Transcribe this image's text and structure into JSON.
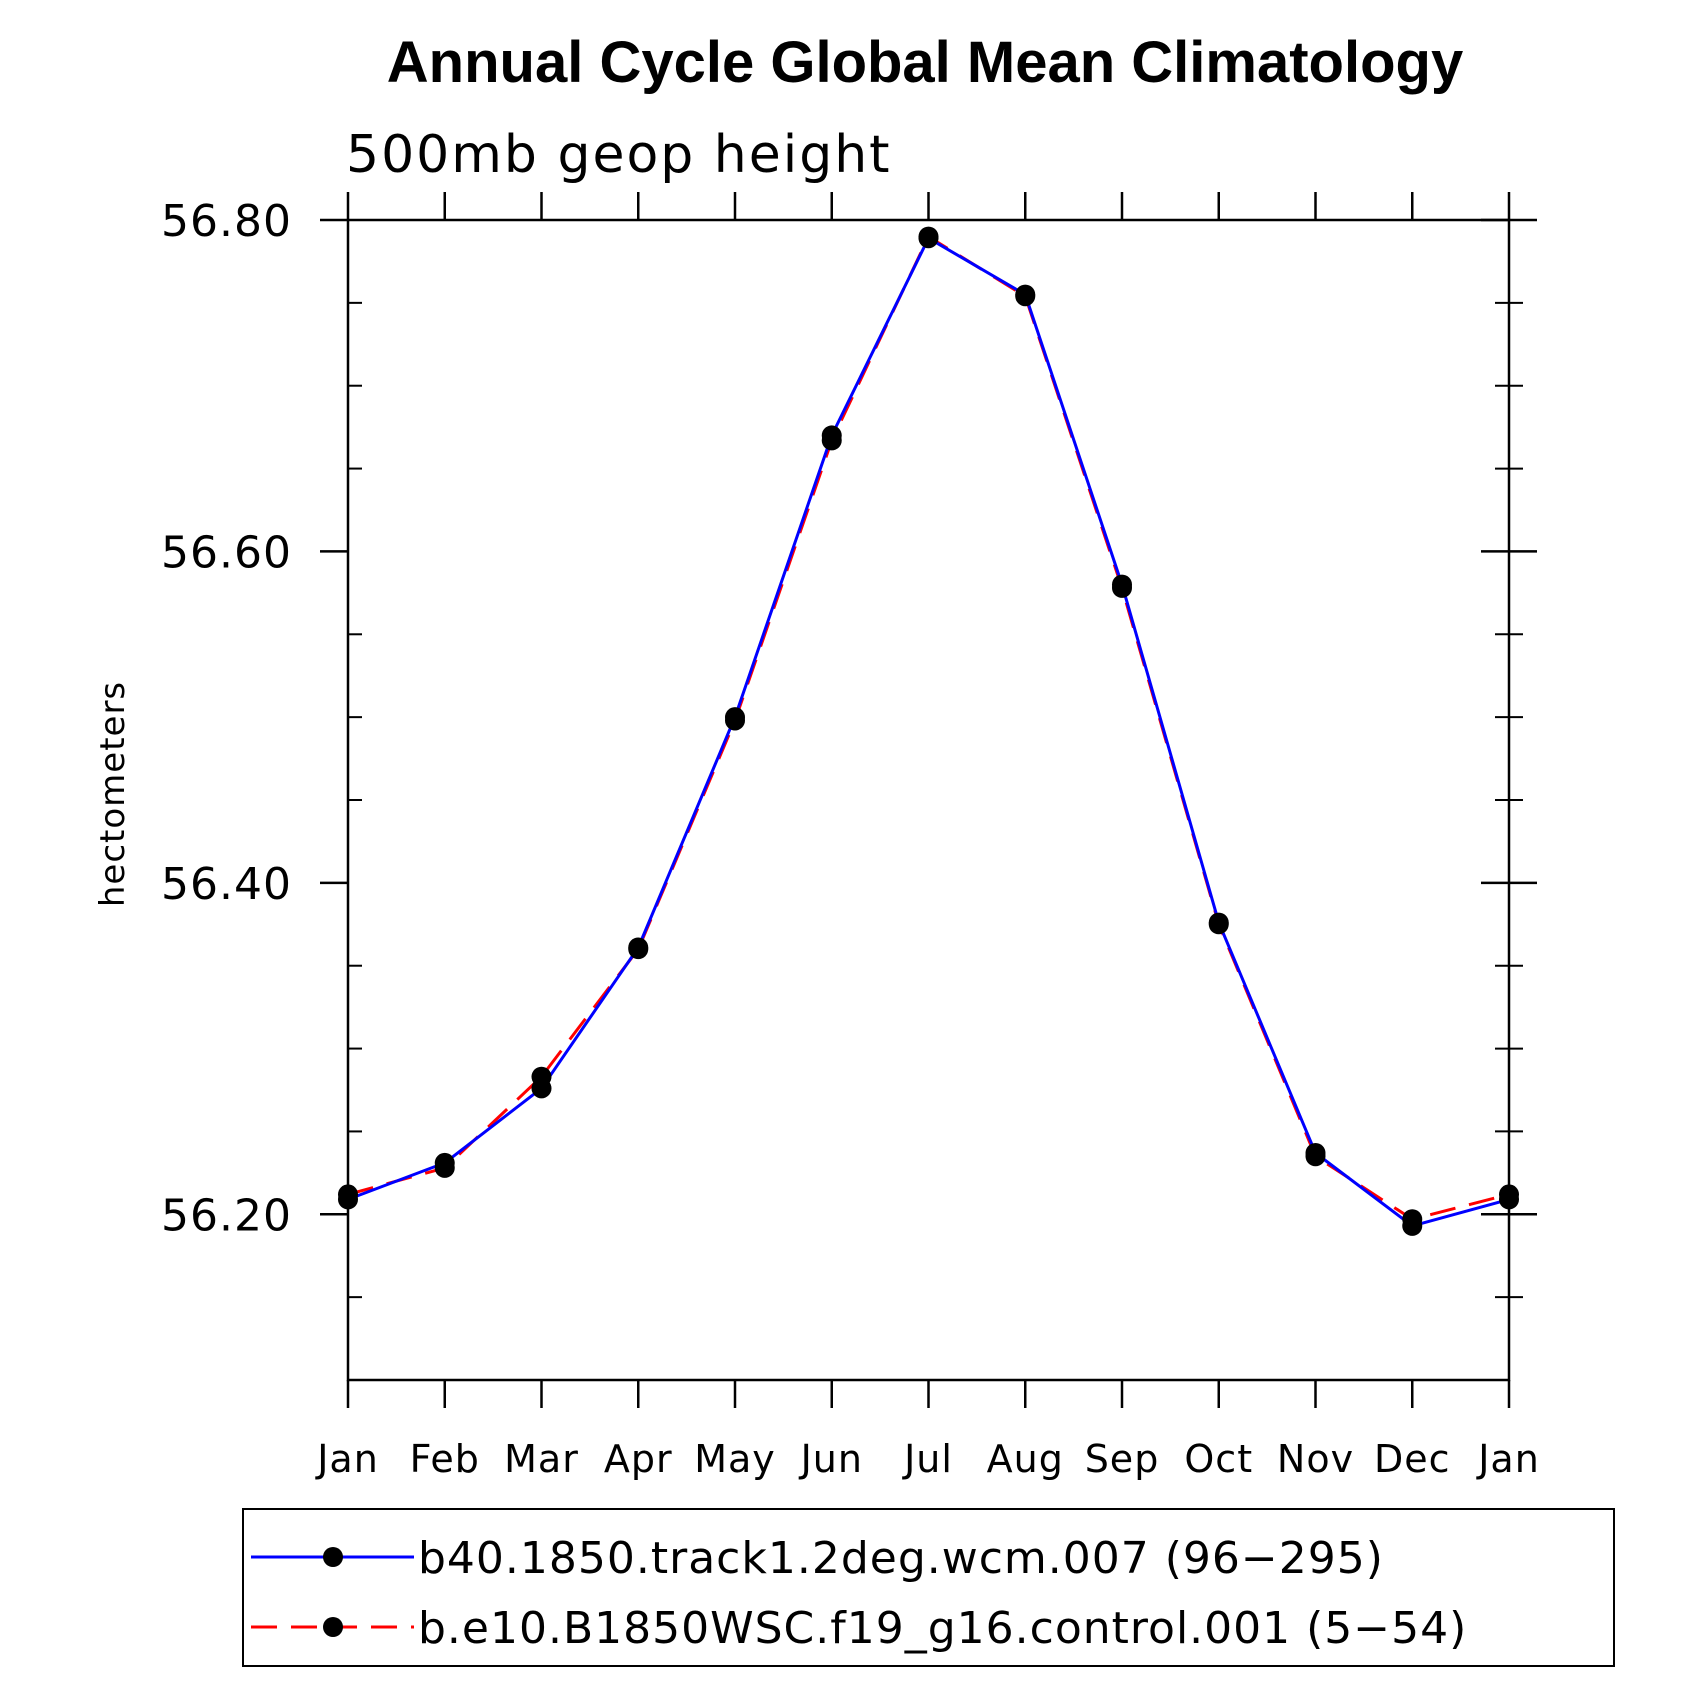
{
  "chart_data": {
    "type": "line",
    "title": "Annual Cycle Global Mean Climatology",
    "subtitle": "500mb geop height",
    "ylabel": "hectometers",
    "xlabel": "",
    "categories": [
      "Jan",
      "Feb",
      "Mar",
      "Apr",
      "May",
      "Jun",
      "Jul",
      "Aug",
      "Sep",
      "Oct",
      "Nov",
      "Dec",
      "Jan"
    ],
    "ylim": [
      56.1,
      56.8
    ],
    "yticks_major": [
      56.2,
      56.4,
      56.6,
      56.8
    ],
    "ytick_labels": [
      "56.20",
      "56.40",
      "56.60",
      "56.80"
    ],
    "grid": false,
    "legend_position": "bottom",
    "series": [
      {
        "name": "b40.1850.track1.2deg.wcm.007 (96−295)",
        "color": "#0000ff",
        "style": "solid",
        "marker": "circle",
        "values": [
          56.209,
          56.231,
          56.276,
          56.361,
          56.5,
          56.67,
          56.789,
          56.755,
          56.58,
          56.376,
          56.237,
          56.193,
          56.209
        ]
      },
      {
        "name": "b.e10.B1850WSC.f19_g16.control.001 (5−54)",
        "color": "#ff0000",
        "style": "dashed",
        "marker": "circle",
        "values": [
          56.212,
          56.228,
          56.283,
          56.36,
          56.498,
          56.667,
          56.79,
          56.754,
          56.578,
          56.375,
          56.235,
          56.197,
          56.212
        ]
      }
    ]
  }
}
